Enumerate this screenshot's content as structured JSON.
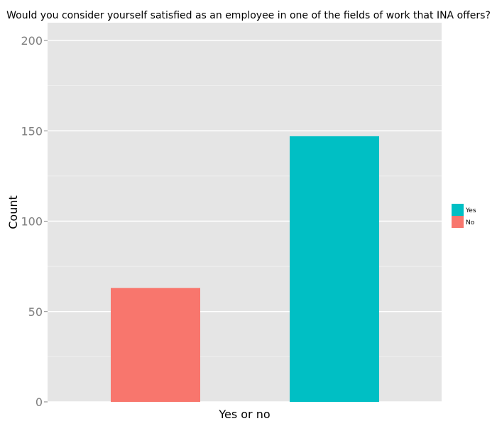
{
  "chart_data": {
    "type": "bar",
    "title": "Would you consider yourself satisfied as an employee in one of the fields of work that INA offers?",
    "xlabel": "Yes or no",
    "ylabel": "Count",
    "ylim": [
      0,
      200
    ],
    "y_ticks": [
      0,
      50,
      100,
      150,
      200
    ],
    "grid": true,
    "legend_position": "right",
    "bars": [
      {
        "label": "No",
        "value": 63,
        "color": "#F8766D"
      },
      {
        "label": "Yes",
        "value": 147,
        "color": "#00BFC4"
      }
    ],
    "legend": [
      {
        "label": "Yes",
        "color": "#00BFC4"
      },
      {
        "label": "No",
        "color": "#F8766D"
      }
    ],
    "panel_background": "#E5E5E5",
    "grid_color": "#ffffff"
  }
}
